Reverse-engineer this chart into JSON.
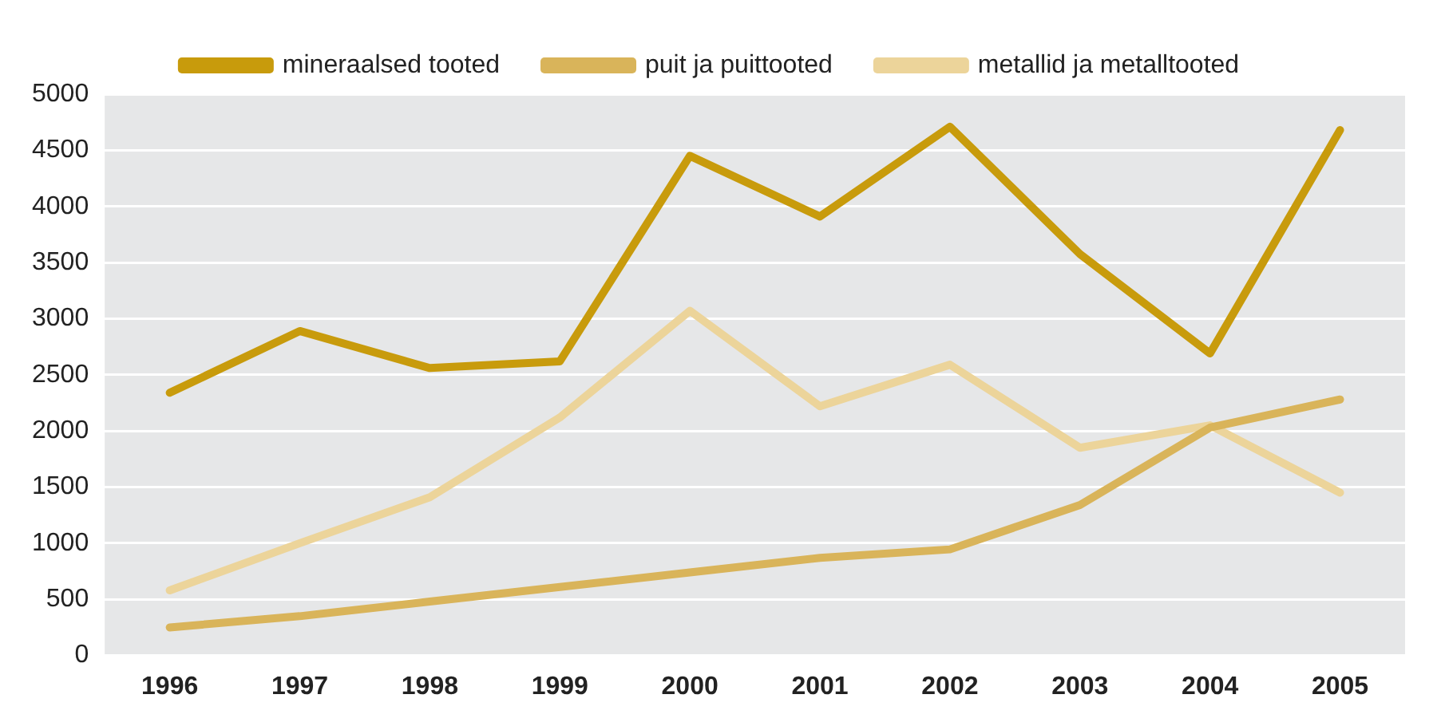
{
  "chart_data": {
    "type": "line",
    "categories": [
      "1996",
      "1997",
      "1998",
      "1999",
      "2000",
      "2001",
      "2002",
      "2003",
      "2004",
      "2005"
    ],
    "series": [
      {
        "name": "mineraalsed tooted",
        "color": "#c89b0c",
        "values": [
          2340,
          2890,
          2560,
          2620,
          4450,
          3910,
          4710,
          3575,
          2690,
          4680
        ]
      },
      {
        "name": "puit ja puittooted",
        "color": "#d9b45a",
        "values": [
          250,
          350,
          480,
          610,
          740,
          870,
          945,
          1340,
          2030,
          2280
        ]
      },
      {
        "name": "metallid ja metalltooted",
        "color": "#ecd49a",
        "values": [
          580,
          1000,
          1410,
          2120,
          3070,
          2220,
          2590,
          1850,
          2050,
          1450
        ]
      }
    ],
    "ylim": [
      0,
      5000
    ],
    "yticks": [
      0,
      500,
      1000,
      1500,
      2000,
      2500,
      3000,
      3500,
      4000,
      4500,
      5000
    ],
    "grid": "y",
    "legend": "top",
    "marker": "none",
    "line_style": "solid"
  }
}
